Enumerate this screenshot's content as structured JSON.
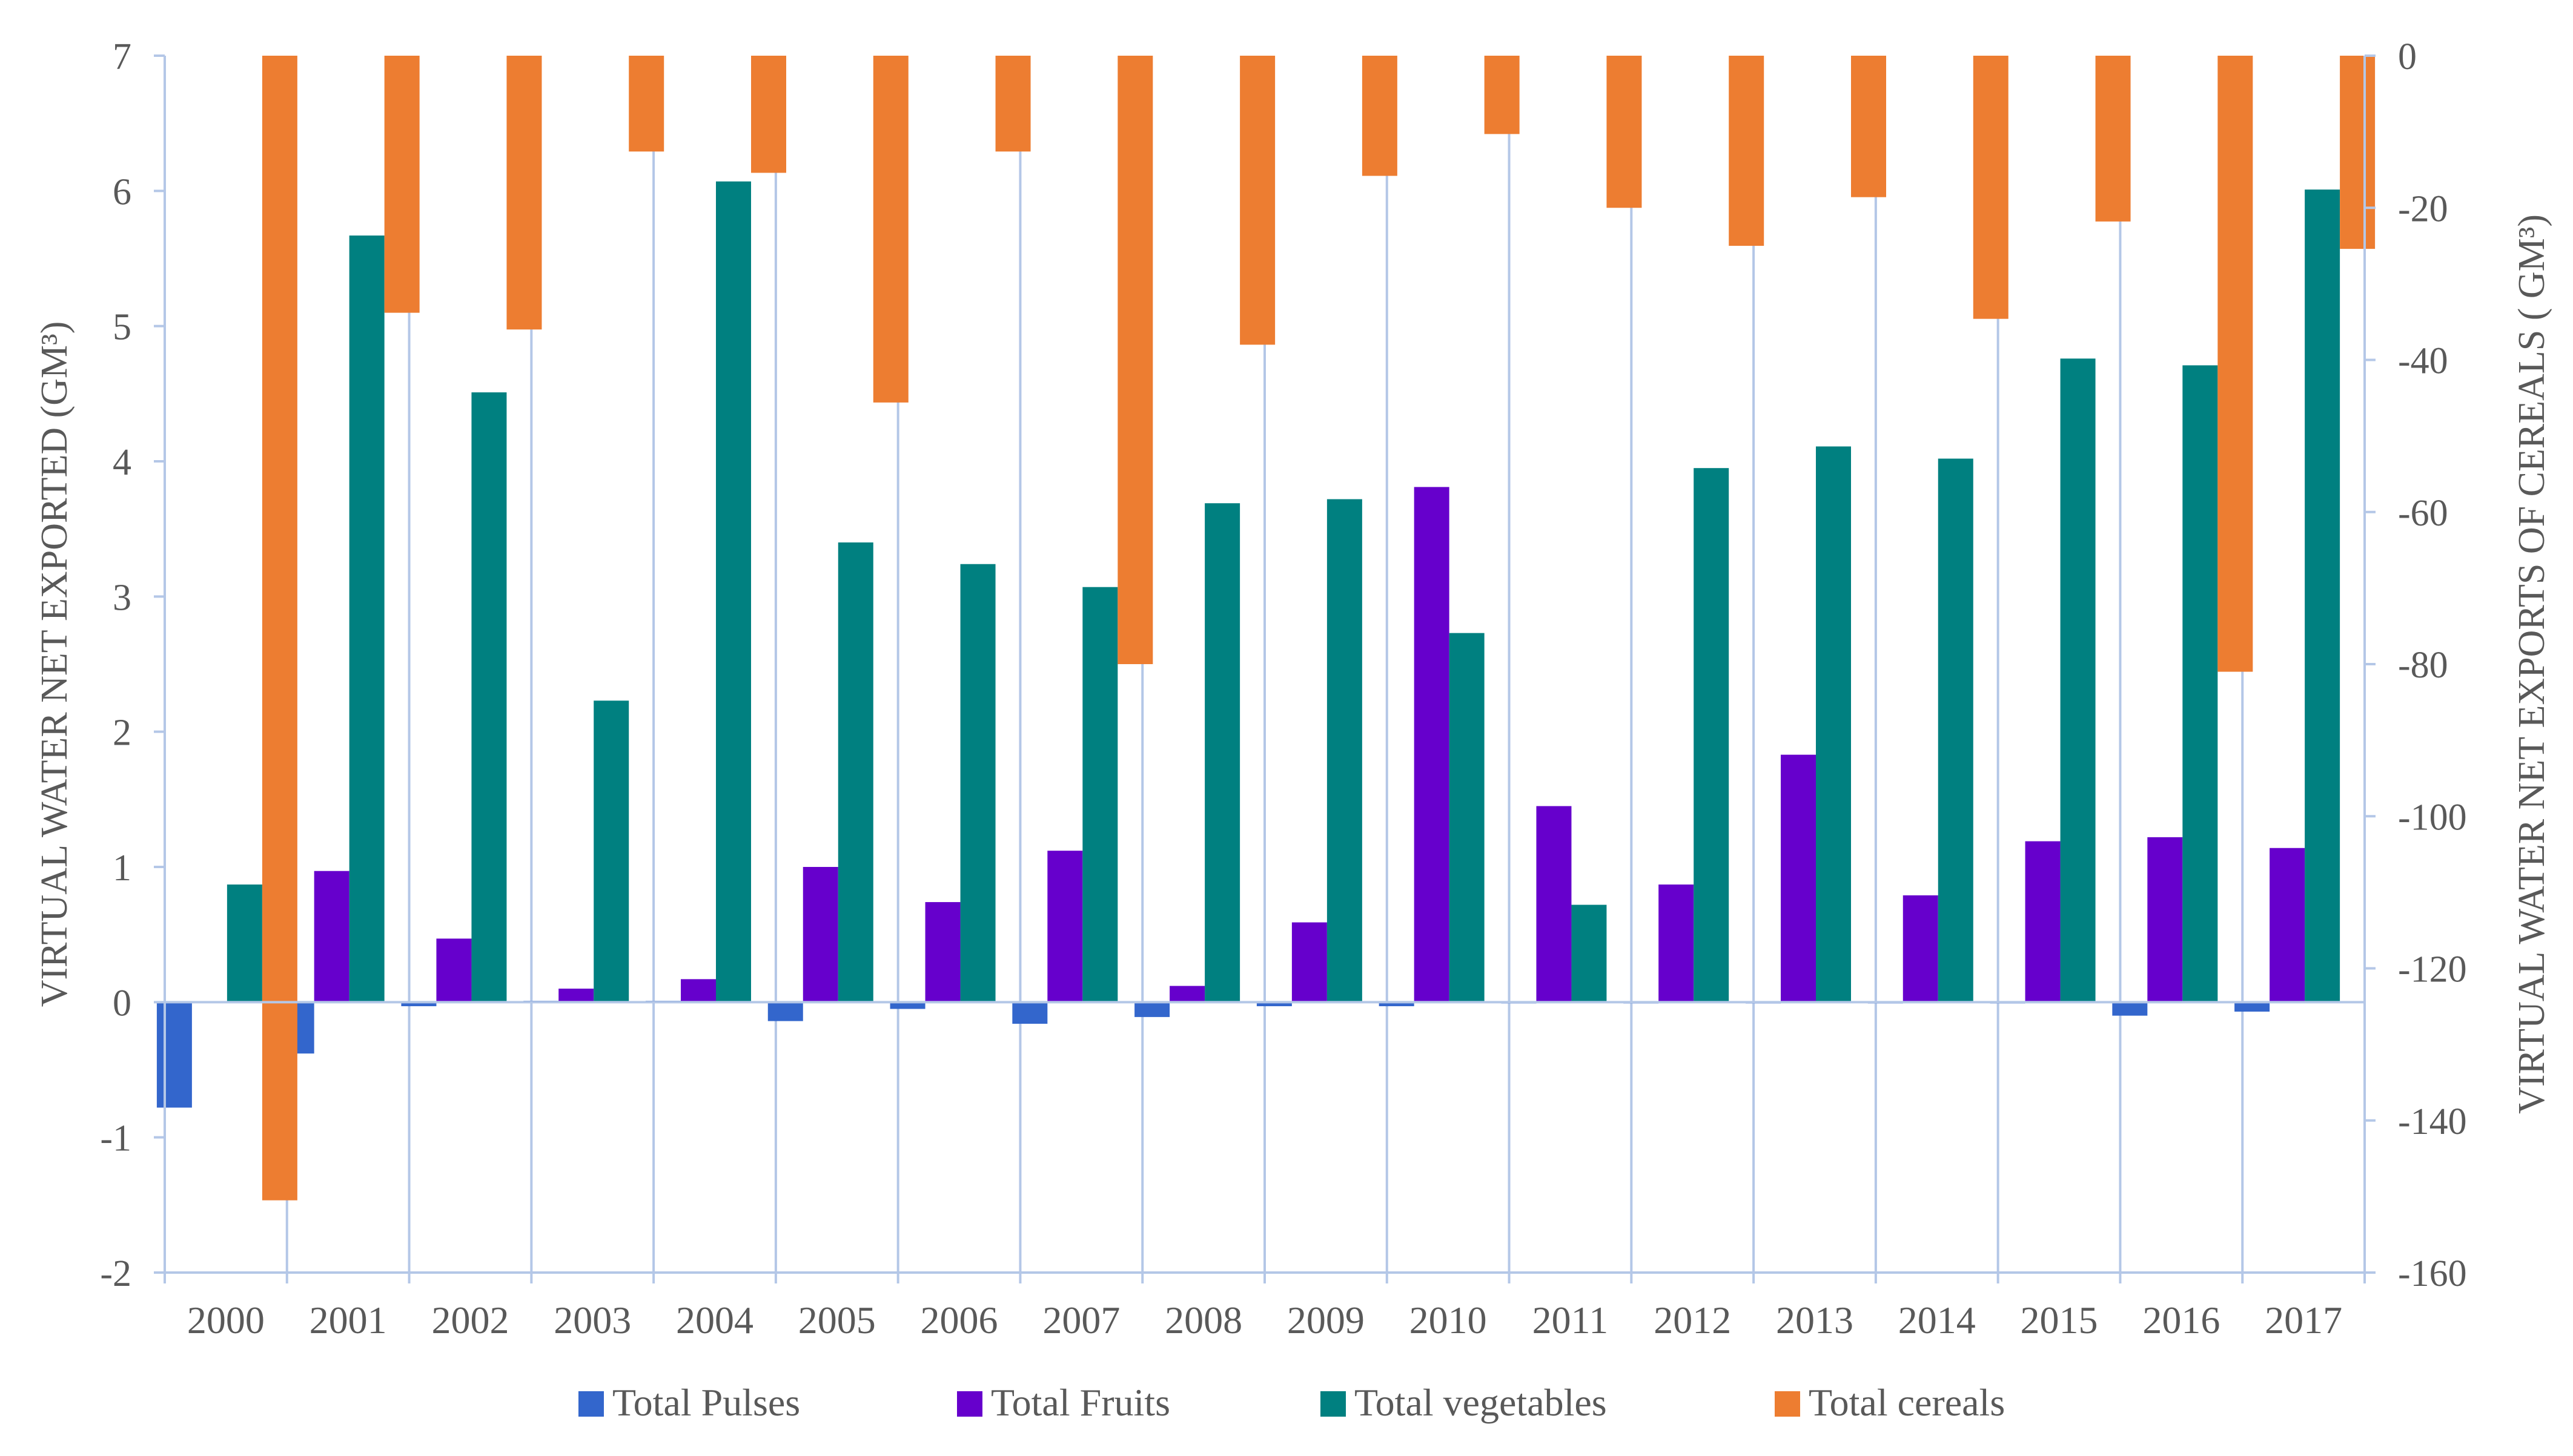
{
  "chart_data": {
    "type": "bar",
    "title": "",
    "categories": [
      "2000",
      "2001",
      "2002",
      "2003",
      "2004",
      "2005",
      "2006",
      "2007",
      "2008",
      "2009",
      "2010",
      "2011",
      "2012",
      "2013",
      "2014",
      "2015",
      "2016",
      "2017"
    ],
    "left_axis": {
      "label": "VIRTUAL WATER NET EXPORTED (GM³)",
      "ylim": [
        -2,
        7
      ],
      "ticks": [
        -2,
        -1,
        0,
        1,
        2,
        3,
        4,
        5,
        6,
        7
      ],
      "tick_labels": [
        "-2",
        "-1",
        "0",
        "1",
        "2",
        "3",
        "4",
        "5",
        "6",
        "7"
      ]
    },
    "right_axis": {
      "label": "VIRTUAL WATER NET EXPORTS OF CEREALS ( GM³)",
      "ylim": [
        -160,
        0
      ],
      "ticks": [
        0,
        -20,
        -40,
        -60,
        -80,
        -100,
        -120,
        -140,
        -160
      ],
      "tick_labels": [
        "0",
        "-20",
        "-40",
        "-60",
        "-80",
        "-100",
        "-120",
        "-140",
        "-160"
      ]
    },
    "series": [
      {
        "name": "Total Pulses",
        "axis": "left",
        "color": "#3366CC",
        "values": [
          -0.78,
          -0.38,
          -0.03,
          0.01,
          0.01,
          -0.14,
          -0.05,
          -0.16,
          -0.11,
          -0.03,
          -0.03,
          -0.01,
          -0.01,
          -0.01,
          -0.01,
          -0.01,
          -0.1,
          -0.07
        ]
      },
      {
        "name": "Total Fruits",
        "axis": "left",
        "color": "#6600CC",
        "values": [
          0.0,
          0.97,
          0.47,
          0.1,
          0.17,
          1.0,
          0.74,
          1.12,
          0.12,
          0.59,
          3.81,
          1.45,
          0.87,
          1.83,
          0.79,
          1.19,
          1.22,
          1.14
        ]
      },
      {
        "name": "Total vegetables",
        "axis": "left",
        "color": "#008080",
        "values": [
          0.87,
          5.67,
          4.51,
          2.23,
          6.07,
          3.4,
          3.24,
          3.07,
          3.69,
          3.72,
          2.73,
          0.72,
          3.95,
          4.11,
          4.02,
          4.76,
          4.71,
          6.01
        ]
      },
      {
        "name": "Total cereals",
        "axis": "right",
        "color": "#ED7D31",
        "values": [
          -150.5,
          -33.8,
          -36.0,
          -12.6,
          -15.4,
          -45.6,
          -12.6,
          -80.0,
          -38.0,
          -15.8,
          -10.3,
          -20.0,
          -25.0,
          -18.6,
          -34.6,
          -21.8,
          -81.0,
          -25.4
        ]
      }
    ],
    "legend": [
      "Total Pulses",
      "Total Fruits",
      "Total vegetables",
      "Total cereals"
    ],
    "legend_position": "bottom",
    "grid": "vertical lines between categories"
  }
}
